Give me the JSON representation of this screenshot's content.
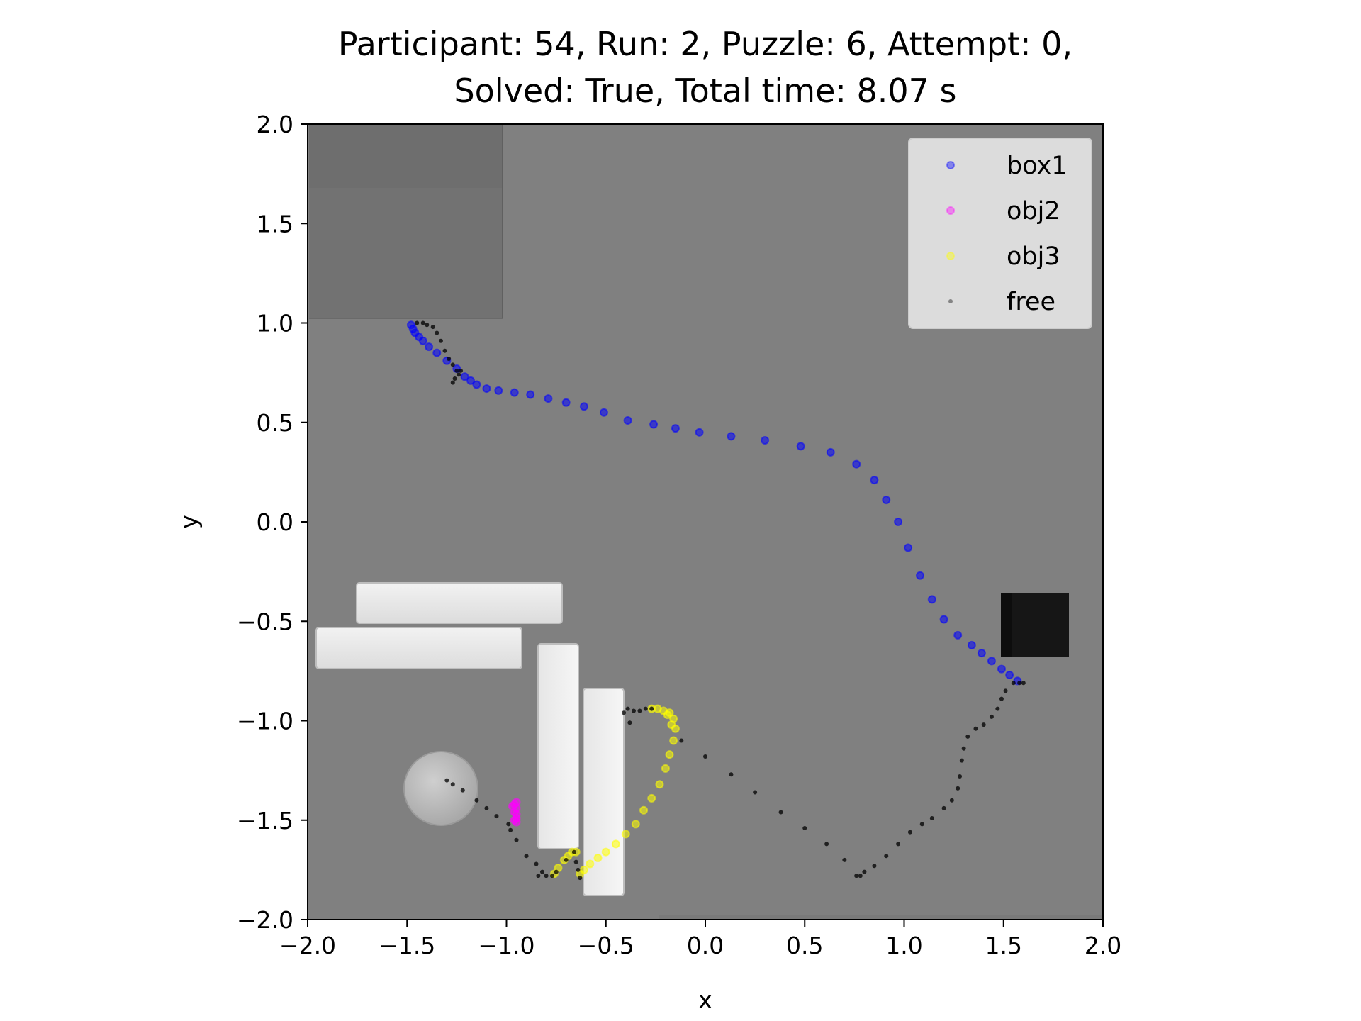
{
  "title_line1": "Participant: 54, Run: 2, Puzzle: 6, Attempt: 0,",
  "title_line2": "Solved: True, Total time: 8.07 s",
  "chart_data": {
    "type": "scatter",
    "title": "Participant: 54, Run: 2, Puzzle: 6, Attempt: 0, Solved: True, Total time: 8.07 s",
    "xlabel": "x",
    "ylabel": "y",
    "xlim": [
      -2.0,
      2.0
    ],
    "ylim": [
      -2.0,
      2.0
    ],
    "xticks": [
      "−2.0",
      "−1.5",
      "−1.0",
      "−0.5",
      "0.0",
      "0.5",
      "1.0",
      "1.5",
      "2.0"
    ],
    "yticks": [
      "2.0",
      "1.5",
      "1.0",
      "0.5",
      "0.0",
      "−0.5",
      "−1.0",
      "−1.5",
      "−2.0"
    ],
    "xtick_values": [
      -2.0,
      -1.5,
      -1.0,
      -0.5,
      0.0,
      0.5,
      1.0,
      1.5,
      2.0
    ],
    "ytick_values": [
      2.0,
      1.5,
      1.0,
      0.5,
      0.0,
      -0.5,
      -1.0,
      -1.5,
      -2.0
    ],
    "grid": false,
    "legend_placement": "top-right",
    "background": "grayscale scene image (top-down view of puzzle objects)",
    "series": [
      {
        "name": "box1",
        "color": "#0000ff",
        "points": [
          [
            -1.48,
            0.99
          ],
          [
            -1.47,
            0.97
          ],
          [
            -1.46,
            0.95
          ],
          [
            -1.44,
            0.93
          ],
          [
            -1.42,
            0.91
          ],
          [
            -1.39,
            0.88
          ],
          [
            -1.35,
            0.85
          ],
          [
            -1.3,
            0.81
          ],
          [
            -1.25,
            0.77
          ],
          [
            -1.21,
            0.73
          ],
          [
            -1.18,
            0.71
          ],
          [
            -1.15,
            0.69
          ],
          [
            -1.1,
            0.67
          ],
          [
            -1.04,
            0.66
          ],
          [
            -0.96,
            0.65
          ],
          [
            -0.88,
            0.64
          ],
          [
            -0.79,
            0.62
          ],
          [
            -0.7,
            0.6
          ],
          [
            -0.61,
            0.58
          ],
          [
            -0.51,
            0.55
          ],
          [
            -0.39,
            0.51
          ],
          [
            -0.26,
            0.49
          ],
          [
            -0.15,
            0.47
          ],
          [
            -0.03,
            0.45
          ],
          [
            0.13,
            0.43
          ],
          [
            0.3,
            0.41
          ],
          [
            0.48,
            0.38
          ],
          [
            0.63,
            0.35
          ],
          [
            0.76,
            0.29
          ],
          [
            0.85,
            0.21
          ],
          [
            0.91,
            0.11
          ],
          [
            0.97,
            0.0
          ],
          [
            1.02,
            -0.13
          ],
          [
            1.08,
            -0.27
          ],
          [
            1.14,
            -0.39
          ],
          [
            1.2,
            -0.49
          ],
          [
            1.27,
            -0.57
          ],
          [
            1.34,
            -0.62
          ],
          [
            1.39,
            -0.66
          ],
          [
            1.44,
            -0.7
          ],
          [
            1.49,
            -0.74
          ],
          [
            1.53,
            -0.77
          ],
          [
            1.57,
            -0.8
          ]
        ]
      },
      {
        "name": "obj2",
        "color": "#ff00ff",
        "points": [
          [
            -0.95,
            -1.41
          ],
          [
            -0.95,
            -1.44
          ],
          [
            -0.95,
            -1.47
          ],
          [
            -0.95,
            -1.49
          ],
          [
            -0.95,
            -1.51
          ],
          [
            -0.96,
            -1.42
          ],
          [
            -0.96,
            -1.46
          ],
          [
            -0.97,
            -1.43
          ],
          [
            -0.96,
            -1.5
          ]
        ]
      },
      {
        "name": "obj3",
        "color": "#ffff00",
        "points": [
          [
            -0.76,
            -1.77
          ],
          [
            -0.74,
            -1.74
          ],
          [
            -0.71,
            -1.7
          ],
          [
            -0.69,
            -1.68
          ],
          [
            -0.67,
            -1.66
          ],
          [
            -0.65,
            -1.66
          ],
          [
            -0.63,
            -1.77
          ],
          [
            -0.61,
            -1.75
          ],
          [
            -0.58,
            -1.72
          ],
          [
            -0.54,
            -1.69
          ],
          [
            -0.5,
            -1.66
          ],
          [
            -0.45,
            -1.62
          ],
          [
            -0.4,
            -1.57
          ],
          [
            -0.35,
            -1.52
          ],
          [
            -0.31,
            -1.45
          ],
          [
            -0.27,
            -1.39
          ],
          [
            -0.23,
            -1.32
          ],
          [
            -0.2,
            -1.24
          ],
          [
            -0.18,
            -1.17
          ],
          [
            -0.16,
            -1.1
          ],
          [
            -0.15,
            -1.04
          ],
          [
            -0.16,
            -0.99
          ],
          [
            -0.18,
            -0.96
          ],
          [
            -0.21,
            -0.95
          ],
          [
            -0.24,
            -0.94
          ],
          [
            -0.27,
            -0.94
          ],
          [
            -0.17,
            -1.02
          ],
          [
            -0.19,
            -0.97
          ]
        ]
      },
      {
        "name": "free",
        "color": "#000000",
        "points": [
          [
            -1.45,
            1.0
          ],
          [
            -1.42,
            1.0
          ],
          [
            -1.4,
            0.99
          ],
          [
            -1.37,
            0.98
          ],
          [
            -1.35,
            0.95
          ],
          [
            -1.33,
            0.91
          ],
          [
            -1.31,
            0.86
          ],
          [
            -1.29,
            0.82
          ],
          [
            -1.27,
            0.79
          ],
          [
            -1.25,
            0.76
          ],
          [
            -1.27,
            0.7
          ],
          [
            -1.26,
            0.72
          ],
          [
            -1.24,
            0.74
          ],
          [
            -1.23,
            0.76
          ],
          [
            -1.3,
            -1.3
          ],
          [
            -1.27,
            -1.32
          ],
          [
            -1.22,
            -1.35
          ],
          [
            -1.15,
            -1.4
          ],
          [
            -1.1,
            -1.44
          ],
          [
            -1.05,
            -1.48
          ],
          [
            -0.99,
            -1.52
          ],
          [
            -0.98,
            -1.55
          ],
          [
            -0.95,
            -1.6
          ],
          [
            -0.9,
            -1.68
          ],
          [
            -0.85,
            -1.72
          ],
          [
            -0.82,
            -1.76
          ],
          [
            -0.8,
            -1.78
          ],
          [
            -0.77,
            -1.78
          ],
          [
            -0.84,
            -1.78
          ],
          [
            -0.75,
            -1.76
          ],
          [
            -0.7,
            -1.7
          ],
          [
            -0.66,
            -1.66
          ],
          [
            -0.65,
            -1.71
          ],
          [
            -0.64,
            -1.75
          ],
          [
            -0.63,
            -1.79
          ],
          [
            -0.41,
            -0.96
          ],
          [
            -0.39,
            -0.94
          ],
          [
            -0.36,
            -0.95
          ],
          [
            -0.33,
            -0.95
          ],
          [
            -0.3,
            -0.94
          ],
          [
            -0.27,
            -0.94
          ],
          [
            -0.38,
            -1.01
          ],
          [
            -0.12,
            -1.1
          ],
          [
            0.0,
            -1.18
          ],
          [
            0.13,
            -1.27
          ],
          [
            0.25,
            -1.36
          ],
          [
            0.38,
            -1.46
          ],
          [
            0.5,
            -1.54
          ],
          [
            0.61,
            -1.62
          ],
          [
            0.7,
            -1.7
          ],
          [
            0.76,
            -1.78
          ],
          [
            0.78,
            -1.78
          ],
          [
            0.8,
            -1.76
          ],
          [
            0.85,
            -1.73
          ],
          [
            0.91,
            -1.68
          ],
          [
            0.97,
            -1.62
          ],
          [
            1.03,
            -1.56
          ],
          [
            1.09,
            -1.52
          ],
          [
            1.14,
            -1.49
          ],
          [
            1.2,
            -1.44
          ],
          [
            1.24,
            -1.4
          ],
          [
            1.27,
            -1.34
          ],
          [
            1.28,
            -1.28
          ],
          [
            1.29,
            -1.2
          ],
          [
            1.3,
            -1.14
          ],
          [
            1.32,
            -1.08
          ],
          [
            1.36,
            -1.04
          ],
          [
            1.4,
            -1.02
          ],
          [
            1.44,
            -0.98
          ],
          [
            1.47,
            -0.94
          ],
          [
            1.49,
            -0.89
          ],
          [
            1.51,
            -0.85
          ],
          [
            1.55,
            -0.81
          ],
          [
            1.58,
            -0.81
          ],
          [
            1.6,
            -0.81
          ]
        ]
      }
    ]
  },
  "legend": {
    "items": [
      {
        "label": "box1",
        "color": "#0000ff"
      },
      {
        "label": "obj2",
        "color": "#ff00ff"
      },
      {
        "label": "obj3",
        "color": "#ffff00"
      },
      {
        "label": "free",
        "color": "#000000"
      }
    ]
  }
}
